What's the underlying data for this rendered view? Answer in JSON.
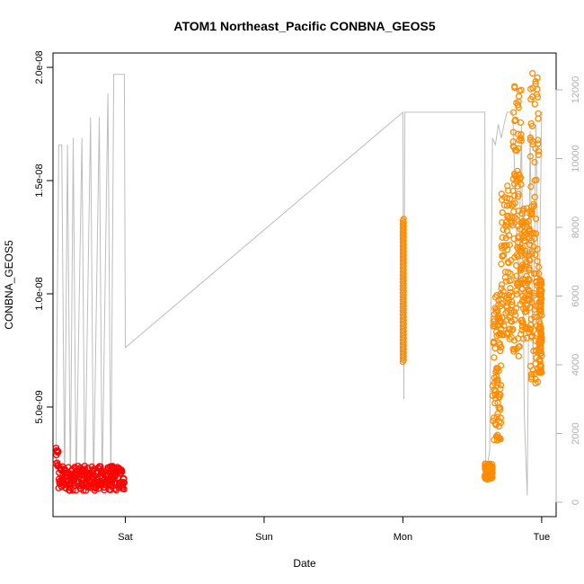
{
  "chart_data": {
    "type": "scatter",
    "title": "ATOM1 Northeast_Pacific CONBNA_GEOS5",
    "xlabel": "Date",
    "ylabel": "CONBNA_GEOS5",
    "xlim": [
      "Fri 11:30",
      "Tue 02:30"
    ],
    "ylim": [
      0,
      2e-08
    ],
    "x_ticks": [
      {
        "t": "Sat 00:00",
        "label": "Sat"
      },
      {
        "t": "Sun 00:00",
        "label": "Sun"
      },
      {
        "t": "Mon 00:00",
        "label": "Mon"
      },
      {
        "t": "Tue 00:00",
        "label": "Tue"
      }
    ],
    "y_ticks": [
      {
        "v": 5e-09,
        "label": "5.0e-09"
      },
      {
        "v": 1e-08,
        "label": "1.0e-08"
      },
      {
        "v": 1.5e-08,
        "label": "1.5e-08"
      },
      {
        "v": 2e-08,
        "label": "2.0e-08"
      }
    ],
    "y2_ticks": [
      {
        "v": 0,
        "label": "0"
      },
      {
        "v": 2000,
        "label": "2000"
      },
      {
        "v": 4000,
        "label": "4000"
      },
      {
        "v": 6000,
        "label": "6000"
      },
      {
        "v": 8000,
        "label": "8000"
      },
      {
        "v": 10000,
        "label": "10000"
      },
      {
        "v": 12000,
        "label": "12000"
      }
    ],
    "y2lim": [
      0,
      12500
    ],
    "grid": false,
    "colors": {
      "series1": "#ff0000",
      "series2": "#ff8c00",
      "secondary": "#bdbdbd"
    },
    "series": [
      {
        "color": "#ff0000",
        "x_range": [
          "Fri 12:00",
          "Fri 23:50"
        ],
        "y_range": [
          1.1e-09,
          3.2e-09
        ],
        "note_points": "dense circle markers clustered 1.2e-09 to 2.5e-09"
      },
      {
        "color": "#ff8c00",
        "x_range": [
          "Mon 00:00",
          "Tue 00:00"
        ],
        "y_range": [
          1.8e-09,
          1.98e-08
        ]
      }
    ],
    "secondary_series": {
      "color": "#bdbdbd",
      "axis": "right",
      "points": [
        [
          "Fri 12:00",
          1200
        ],
        [
          "Fri 12:30",
          10400
        ],
        [
          "Fri 13:00",
          10400
        ],
        [
          "Fri 13:30",
          400
        ],
        [
          "Fri 14:00",
          10400
        ],
        [
          "Fri 14:30",
          400
        ],
        [
          "Fri 15:00",
          10600
        ],
        [
          "Fri 15:30",
          400
        ],
        [
          "Fri 16:30",
          10600
        ],
        [
          "Fri 17:00",
          400
        ],
        [
          "Fri 18:00",
          11200
        ],
        [
          "Fri 18:30",
          400
        ],
        [
          "Fri 19:30",
          11200
        ],
        [
          "Fri 20:00",
          400
        ],
        [
          "Fri 21:00",
          11900
        ],
        [
          "Fri 21:30",
          400
        ],
        [
          "Fri 22:00",
          12450
        ],
        [
          "Fri 23:00",
          12450
        ],
        [
          "Fri 23:50",
          12450
        ],
        [
          "Sat 00:00",
          4500
        ],
        [
          "Mon 00:00",
          11350
        ],
        [
          "Mon 00:10",
          3000
        ],
        [
          "Mon 00:20",
          11350
        ],
        [
          "Mon 14:10",
          11350
        ],
        [
          "Mon 14:20",
          800
        ],
        [
          "Mon 15:00",
          1500
        ],
        [
          "Mon 15:30",
          10600
        ],
        [
          "Mon 16:00",
          10400
        ],
        [
          "Mon 16:30",
          11000
        ],
        [
          "Mon 17:00",
          10600
        ],
        [
          "Mon 17:30",
          11000
        ],
        [
          "Mon 18:00",
          11350
        ],
        [
          "Mon 19:00",
          11350
        ],
        [
          "Mon 20:00",
          6000
        ],
        [
          "Mon 20:30",
          11000
        ],
        [
          "Mon 21:00",
          2500
        ],
        [
          "Mon 21:30",
          200
        ],
        [
          "Mon 22:00",
          10800
        ],
        [
          "Mon 22:30",
          4000
        ],
        [
          "Mon 23:00",
          11000
        ],
        [
          "Mon 23:30",
          5000
        ],
        [
          "Tue 00:00",
          11350
        ],
        [
          "Tue 00:10",
          11350
        ]
      ]
    }
  }
}
